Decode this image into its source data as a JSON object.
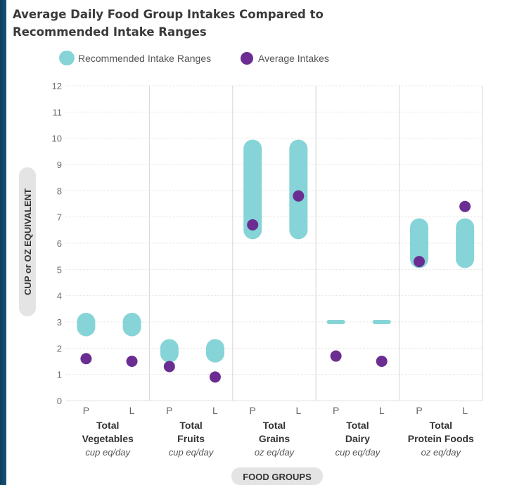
{
  "title_line1": "Average Daily Food Group Intakes Compared to",
  "title_line2": "Recommended Intake Ranges",
  "colors": {
    "range": "#86d4d7",
    "intake": "#6b2d91",
    "grid": "#e3e3e3",
    "divider": "#d6d6d6",
    "pill": "#e4e4e4"
  },
  "chart_data": {
    "type": "range-dot",
    "title": "Average Daily Food Group Intakes Compared to Recommended Intake Ranges",
    "xlabel": "FOOD GROUPS",
    "ylabel": "CUP or OZ EQUIVALENT",
    "ylim": [
      0,
      12
    ],
    "yticks": [
      0,
      1,
      2,
      3,
      4,
      5,
      6,
      7,
      8,
      9,
      10,
      11,
      12
    ],
    "grid": true,
    "legend": {
      "placement": "top-left",
      "entries": [
        "Recommended Intake Ranges",
        "Average Intakes"
      ]
    },
    "subcategory_labels": [
      "P",
      "L"
    ],
    "groups": [
      {
        "name_line1": "Total",
        "name_line2": "Vegetables",
        "unit": "cup eq/day",
        "P": {
          "range": [
            2.8,
            3.0
          ],
          "average": 1.6
        },
        "L": {
          "range": [
            2.8,
            3.0
          ],
          "average": 1.5
        }
      },
      {
        "name_line1": "Total",
        "name_line2": "Fruits",
        "unit": "cup eq/day",
        "P": {
          "range": [
            1.8,
            2.0
          ],
          "average": 1.3
        },
        "L": {
          "range": [
            1.8,
            2.0
          ],
          "average": 0.9
        }
      },
      {
        "name_line1": "Total",
        "name_line2": "Grains",
        "unit": "oz eq/day",
        "P": {
          "range": [
            6.5,
            9.6
          ],
          "average": 6.7
        },
        "L": {
          "range": [
            6.5,
            9.6
          ],
          "average": 7.8
        }
      },
      {
        "name_line1": "Total",
        "name_line2": "Dairy",
        "unit": "cup eq/day",
        "P": {
          "range": [
            3.0,
            3.0
          ],
          "average": 1.7
        },
        "L": {
          "range": [
            3.0,
            3.0
          ],
          "average": 1.5
        }
      },
      {
        "name_line1": "Total",
        "name_line2": "Protein Foods",
        "unit": "oz eq/day",
        "P": {
          "range": [
            5.4,
            6.6
          ],
          "average": 5.3
        },
        "L": {
          "range": [
            5.4,
            6.6
          ],
          "average": 7.4
        }
      }
    ]
  }
}
